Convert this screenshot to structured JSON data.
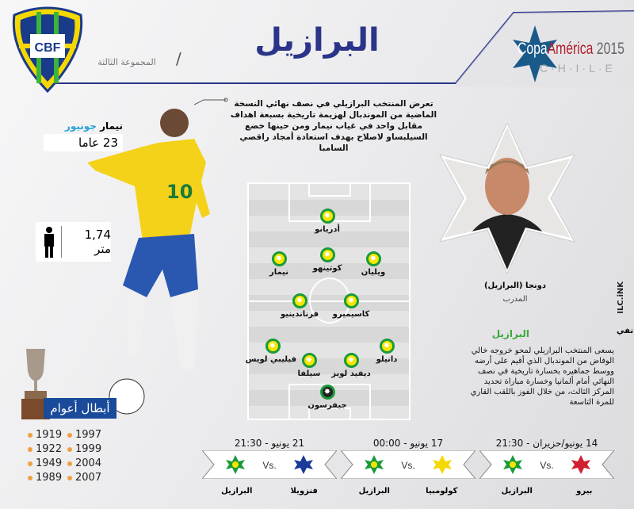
{
  "header": {
    "title": "البرازيل",
    "group": "المجموعة الثالثة",
    "federation_logo": "CBF",
    "tournament_logo": {
      "line1a": "Copa",
      "line1b": "América",
      "year": "2015",
      "line2": "C·H·I·L·E"
    }
  },
  "intro": "تعرض المنتخب البرازيلي في نصف نهائي النسخة الماضية من الموندبال لهزيمة تاريخية بسبعة اهداف مقابل واحد في غياب نيمار ومن حينها خضع السيلبساو لاصلاح بهدف استعادة أمجاد راقصي السامبا",
  "star_player": {
    "first": "نيمار",
    "last": "جونيور",
    "age": "23 عاما",
    "height": "1,74 متر"
  },
  "lineup": [
    {
      "name": "أدريانو",
      "gk": false
    },
    {
      "name": "نيمار",
      "gk": false
    },
    {
      "name": "كوتينهو",
      "gk": false
    },
    {
      "name": "ويليان",
      "gk": false
    },
    {
      "name": "فرناندينيو",
      "gk": false
    },
    {
      "name": "كاسيميرو",
      "gk": false
    },
    {
      "name": "فيليبي لويس",
      "gk": false
    },
    {
      "name": "دانيلو",
      "gk": false
    },
    {
      "name": "سيلفا",
      "gk": false
    },
    {
      "name": "ديفيد لويز",
      "gk": false
    },
    {
      "name": "جيفرسون",
      "gk": true
    }
  ],
  "coach": {
    "name": "دونجا (البرازيل)",
    "role": "المدرب"
  },
  "summary": {
    "heading": "البرازيل",
    "text": "يسعى المنتخب البرازيلي لمحو خروجه خالي الوفاض من الموندبال الذي أقيم على أرضه ووسط جماهيره بخسارة تاريخية في نصف النهائي أمام ألمانيا وخسارة مباراة تحديد المركز الثالث، من خلال الفوز باللقب القاري للمرة التاسعة"
  },
  "credit": {
    "brand": "ILC.iNK",
    "label": "إنفي"
  },
  "titles": {
    "heading": "أبطال أعوام",
    "years_col1": [
      "1919",
      "1922",
      "1949",
      "1989"
    ],
    "years_col2": [
      "1997",
      "1999",
      "2004",
      "2007"
    ]
  },
  "matches": [
    {
      "date": "21 يونيو - 21:30",
      "home": "فنزويلا",
      "away": "البرازيل",
      "vs": "Vs."
    },
    {
      "date": "17 يونيو - 00:00",
      "home": "كولومبيا",
      "away": "البرازيل",
      "vs": "Vs."
    },
    {
      "date": "14 يونيو/حزيران - 21:30",
      "home": "بيرو",
      "away": "البرازيل",
      "vs": "Vs."
    }
  ],
  "colors": {
    "title": "#2b3488",
    "green": "#1a9a3a",
    "yellow": "#f5e600",
    "accent_blue": "#2aa0d8"
  }
}
